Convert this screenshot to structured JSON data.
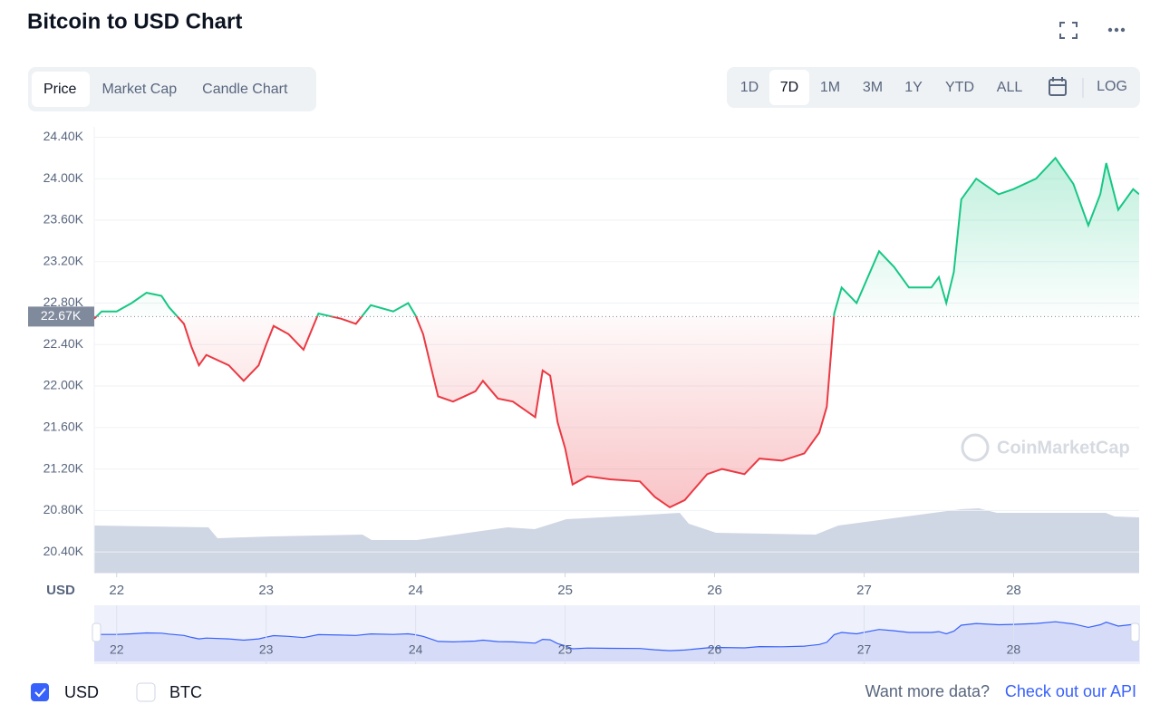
{
  "chart_data": {
    "type": "line",
    "title": "Bitcoin to USD Chart",
    "tabs": [
      "Price",
      "Market Cap",
      "Candle Chart"
    ],
    "ranges": [
      "1D",
      "7D",
      "1M",
      "3M",
      "1Y",
      "YTD",
      "ALL"
    ],
    "log_button": "LOG",
    "y_axis_label": "USD",
    "watermark": "CoinMarketCap",
    "x": [
      21.85,
      21.9,
      22.0,
      22.1,
      22.2,
      22.3,
      22.35,
      22.45,
      22.5,
      22.55,
      22.6,
      22.75,
      22.85,
      22.95,
      23.0,
      23.05,
      23.15,
      23.25,
      23.35,
      23.5,
      23.6,
      23.7,
      23.85,
      23.95,
      24.0,
      24.05,
      24.1,
      24.15,
      24.25,
      24.4,
      24.45,
      24.55,
      24.65,
      24.8,
      24.85,
      24.9,
      24.95,
      25.0,
      25.05,
      25.15,
      25.3,
      25.5,
      25.6,
      25.7,
      25.8,
      25.95,
      26.05,
      26.2,
      26.3,
      26.45,
      26.6,
      26.7,
      26.75,
      26.8,
      26.85,
      26.95,
      27.1,
      27.2,
      27.3,
      27.45,
      27.5,
      27.55,
      27.6,
      27.65,
      27.75,
      27.9,
      28.0,
      28.15,
      28.28,
      28.4,
      28.5,
      28.58,
      28.62,
      28.7,
      28.8,
      28.84
    ],
    "values": [
      22650,
      22720,
      22720,
      22800,
      22900,
      22870,
      22760,
      22600,
      22380,
      22200,
      22300,
      22200,
      22050,
      22200,
      22400,
      22580,
      22500,
      22350,
      22700,
      22650,
      22600,
      22780,
      22720,
      22800,
      22680,
      22500,
      22200,
      21900,
      21850,
      21950,
      22050,
      21880,
      21850,
      21700,
      22150,
      22100,
      21650,
      21400,
      21050,
      21130,
      21100,
      21080,
      20930,
      20830,
      20900,
      21150,
      21200,
      21150,
      21300,
      21280,
      21350,
      21550,
      21800,
      22700,
      22950,
      22800,
      23300,
      23150,
      22950,
      22950,
      23050,
      22800,
      23100,
      23800,
      24000,
      23850,
      23900,
      24000,
      24200,
      23950,
      23550,
      23850,
      24150,
      23700,
      23900,
      23850
    ],
    "colors": {
      "up": "#16c784",
      "down": "#ea3943"
    },
    "baseline": {
      "value": 22670,
      "label": "22.67K"
    },
    "xlim": [
      21.85,
      28.84
    ],
    "xticks": [
      22,
      23,
      24,
      25,
      26,
      27,
      28
    ],
    "ylim": [
      20200,
      24500
    ],
    "yticks": [
      {
        "value": 24400,
        "label": "24.40K"
      },
      {
        "value": 24000,
        "label": "24.00K"
      },
      {
        "value": 23600,
        "label": "23.60K"
      },
      {
        "value": 23200,
        "label": "23.20K"
      },
      {
        "value": 22800,
        "label": "22.80K"
      },
      {
        "value": 22400,
        "label": "22.40K"
      },
      {
        "value": 22000,
        "label": "22.00K"
      },
      {
        "value": 21600,
        "label": "21.60K"
      },
      {
        "value": 21200,
        "label": "21.20K"
      },
      {
        "value": 20800,
        "label": "20.80K"
      },
      {
        "value": 20400,
        "label": "20.40K"
      }
    ],
    "grid": true,
    "currencies": [
      "USD",
      "BTC"
    ],
    "footer_text": "Want more data?",
    "footer_link": "Check out our API"
  }
}
